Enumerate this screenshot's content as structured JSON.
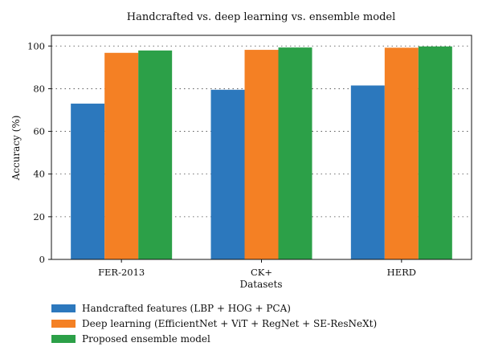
{
  "chart_data": {
    "type": "bar",
    "title": "Handcrafted vs. deep learning vs. ensemble model",
    "xlabel": "Datasets",
    "ylabel": "Accuracy (%)",
    "categories": [
      "FER-2013",
      "CK+",
      "HERD"
    ],
    "ylim": [
      0,
      105
    ],
    "yticks": [
      0,
      20,
      40,
      60,
      80,
      100
    ],
    "grid": "horizontal-dotted",
    "legend_position": "bottom-left-outside",
    "series": [
      {
        "name": "Handcrafted features (LBP + HOG + PCA)",
        "values": [
          73,
          79.5,
          81.5
        ],
        "color": "#2c78bd"
      },
      {
        "name": "Deep learning (EfficientNet + ViT + RegNet + SE-ResNeXt)",
        "values": [
          96.8,
          98.2,
          99.2
        ],
        "color": "#f48024"
      },
      {
        "name": "Proposed ensemble model",
        "values": [
          97.9,
          99.3,
          99.8
        ],
        "color": "#2ca048"
      }
    ]
  }
}
